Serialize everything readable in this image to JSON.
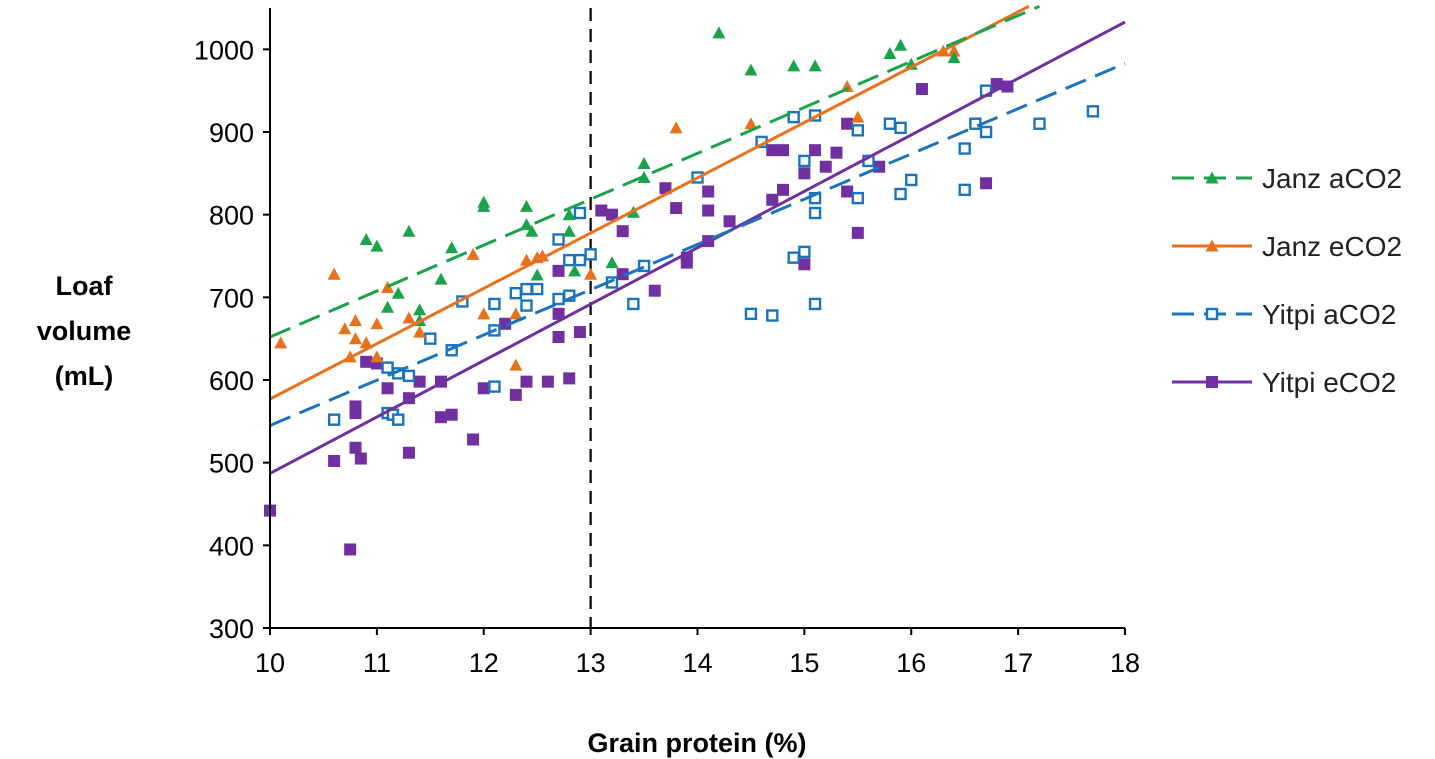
{
  "chart_data": {
    "type": "scatter",
    "xlabel": "Grain protein (%)",
    "ylabel": [
      "Loaf",
      "volume",
      "(mL)"
    ],
    "xlim": [
      10,
      18
    ],
    "ylim": [
      300,
      1050
    ],
    "xticks": [
      "10",
      "11",
      "12",
      "13",
      "14",
      "15",
      "16",
      "17",
      "18"
    ],
    "yticks": [
      "300",
      "400",
      "500",
      "600",
      "700",
      "800",
      "900",
      "1000"
    ],
    "xtick_values": [
      10,
      11,
      12,
      13,
      14,
      15,
      16,
      17,
      18
    ],
    "ytick_values": [
      300,
      400,
      500,
      600,
      700,
      800,
      900,
      1000
    ],
    "grid": false,
    "legend_position": "right",
    "reference_line": {
      "x": 13,
      "style": "dashed",
      "color": "#000000"
    },
    "series": [
      {
        "name": "Janz aCO2",
        "color": "#1aa34a",
        "marker": "triangle",
        "filled": true,
        "line_style": "dashed",
        "fit": {
          "x": [
            10,
            17.2
          ],
          "y": [
            652,
            1052
          ]
        },
        "points": [
          [
            10.9,
            770
          ],
          [
            11.0,
            762
          ],
          [
            11.1,
            688
          ],
          [
            11.2,
            705
          ],
          [
            11.3,
            780
          ],
          [
            11.4,
            685
          ],
          [
            11.4,
            672
          ],
          [
            11.6,
            722
          ],
          [
            11.7,
            760
          ],
          [
            12.0,
            815
          ],
          [
            12.0,
            810
          ],
          [
            12.4,
            810
          ],
          [
            12.4,
            788
          ],
          [
            12.45,
            780
          ],
          [
            12.5,
            727
          ],
          [
            12.8,
            800
          ],
          [
            12.8,
            780
          ],
          [
            12.85,
            732
          ],
          [
            13.2,
            742
          ],
          [
            13.4,
            803
          ],
          [
            13.5,
            862
          ],
          [
            13.5,
            845
          ],
          [
            14.2,
            1020
          ],
          [
            14.5,
            975
          ],
          [
            14.9,
            980
          ],
          [
            15.1,
            980
          ],
          [
            15.8,
            995
          ],
          [
            15.9,
            1005
          ],
          [
            16.0,
            982
          ],
          [
            16.4,
            990
          ]
        ]
      },
      {
        "name": "Janz eCO2",
        "color": "#e8711c",
        "marker": "triangle",
        "filled": true,
        "line_style": "solid",
        "fit": {
          "x": [
            10,
            17.1
          ],
          "y": [
            577,
            1052
          ]
        },
        "points": [
          [
            10.1,
            645
          ],
          [
            10.6,
            728
          ],
          [
            10.7,
            662
          ],
          [
            10.75,
            628
          ],
          [
            10.8,
            672
          ],
          [
            10.8,
            650
          ],
          [
            10.9,
            645
          ],
          [
            11.0,
            668
          ],
          [
            11.0,
            628
          ],
          [
            11.1,
            712
          ],
          [
            11.3,
            675
          ],
          [
            11.4,
            658
          ],
          [
            11.9,
            752
          ],
          [
            12.0,
            680
          ],
          [
            12.3,
            618
          ],
          [
            12.3,
            680
          ],
          [
            12.4,
            745
          ],
          [
            12.5,
            748
          ],
          [
            12.55,
            750
          ],
          [
            13.0,
            728
          ],
          [
            13.8,
            905
          ],
          [
            14.5,
            910
          ],
          [
            15.4,
            955
          ],
          [
            15.5,
            918
          ],
          [
            16.3,
            998
          ],
          [
            16.4,
            998
          ]
        ]
      },
      {
        "name": "Yitpi aCO2",
        "color": "#1a74bd",
        "marker": "square",
        "filled": false,
        "line_style": "dashed",
        "fit": {
          "x": [
            10,
            18
          ],
          "y": [
            545,
            983
          ]
        },
        "points": [
          [
            10.6,
            552
          ],
          [
            11.1,
            615
          ],
          [
            11.1,
            560
          ],
          [
            11.15,
            558
          ],
          [
            11.2,
            608
          ],
          [
            11.2,
            552
          ],
          [
            11.3,
            605
          ],
          [
            11.5,
            650
          ],
          [
            11.7,
            636
          ],
          [
            11.8,
            695
          ],
          [
            12.1,
            592
          ],
          [
            12.1,
            660
          ],
          [
            12.1,
            692
          ],
          [
            12.3,
            705
          ],
          [
            12.4,
            710
          ],
          [
            12.4,
            690
          ],
          [
            12.5,
            710
          ],
          [
            12.7,
            770
          ],
          [
            12.7,
            698
          ],
          [
            12.8,
            745
          ],
          [
            12.8,
            702
          ],
          [
            12.9,
            802
          ],
          [
            12.9,
            745
          ],
          [
            13.0,
            752
          ],
          [
            13.2,
            718
          ],
          [
            13.4,
            692
          ],
          [
            13.5,
            738
          ],
          [
            14.0,
            845
          ],
          [
            14.5,
            680
          ],
          [
            14.6,
            888
          ],
          [
            14.7,
            678
          ],
          [
            14.9,
            918
          ],
          [
            14.9,
            748
          ],
          [
            15.0,
            865
          ],
          [
            15.0,
            755
          ],
          [
            15.1,
            920
          ],
          [
            15.1,
            820
          ],
          [
            15.1,
            802
          ],
          [
            15.1,
            692
          ],
          [
            15.5,
            902
          ],
          [
            15.5,
            820
          ],
          [
            15.6,
            865
          ],
          [
            15.8,
            910
          ],
          [
            15.9,
            905
          ],
          [
            15.9,
            825
          ],
          [
            16.0,
            842
          ],
          [
            16.5,
            880
          ],
          [
            16.5,
            830
          ],
          [
            16.6,
            910
          ],
          [
            16.7,
            950
          ],
          [
            16.7,
            900
          ],
          [
            17.2,
            910
          ],
          [
            17.7,
            925
          ]
        ]
      },
      {
        "name": "Yitpi eCO2",
        "color": "#7030a0",
        "marker": "square",
        "filled": true,
        "line_style": "solid",
        "fit": {
          "x": [
            10,
            18
          ],
          "y": [
            487,
            1033
          ]
        },
        "points": [
          [
            10.0,
            442
          ],
          [
            10.6,
            502
          ],
          [
            10.75,
            395
          ],
          [
            10.8,
            568
          ],
          [
            10.8,
            560
          ],
          [
            10.8,
            518
          ],
          [
            10.85,
            505
          ],
          [
            10.9,
            622
          ],
          [
            11.0,
            620
          ],
          [
            11.1,
            590
          ],
          [
            11.3,
            578
          ],
          [
            11.3,
            512
          ],
          [
            11.4,
            598
          ],
          [
            11.6,
            598
          ],
          [
            11.6,
            555
          ],
          [
            11.7,
            558
          ],
          [
            11.9,
            528
          ],
          [
            12.0,
            590
          ],
          [
            12.2,
            668
          ],
          [
            12.3,
            582
          ],
          [
            12.4,
            598
          ],
          [
            12.6,
            598
          ],
          [
            12.7,
            732
          ],
          [
            12.7,
            680
          ],
          [
            12.7,
            652
          ],
          [
            12.8,
            602
          ],
          [
            12.9,
            658
          ],
          [
            13.1,
            805
          ],
          [
            13.2,
            800
          ],
          [
            13.3,
            780
          ],
          [
            13.3,
            728
          ],
          [
            13.6,
            708
          ],
          [
            13.7,
            832
          ],
          [
            13.8,
            808
          ],
          [
            13.9,
            748
          ],
          [
            13.9,
            742
          ],
          [
            14.1,
            828
          ],
          [
            14.1,
            805
          ],
          [
            14.1,
            768
          ],
          [
            14.3,
            792
          ],
          [
            14.7,
            878
          ],
          [
            14.7,
            818
          ],
          [
            14.8,
            878
          ],
          [
            14.8,
            830
          ],
          [
            15.0,
            850
          ],
          [
            15.0,
            740
          ],
          [
            15.1,
            878
          ],
          [
            15.2,
            858
          ],
          [
            15.3,
            875
          ],
          [
            15.4,
            910
          ],
          [
            15.4,
            828
          ],
          [
            15.5,
            778
          ],
          [
            15.7,
            858
          ],
          [
            16.1,
            952
          ],
          [
            16.7,
            838
          ],
          [
            16.8,
            958
          ],
          [
            16.9,
            955
          ]
        ]
      }
    ]
  }
}
